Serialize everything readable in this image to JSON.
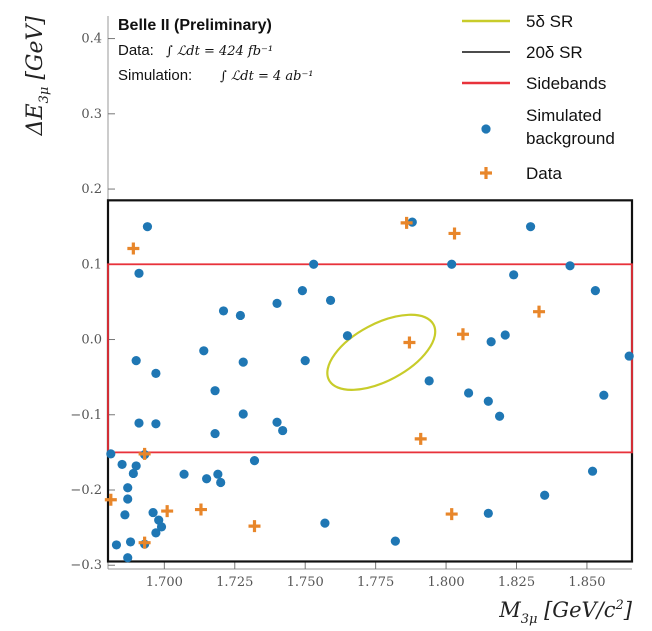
{
  "chart_data": {
    "type": "scatter",
    "xlabel": "M3μ [GeV/c²]",
    "ylabel": "ΔE3μ [GeV]",
    "xlim": [
      1.68,
      1.866
    ],
    "ylim": [
      -0.305,
      0.43
    ],
    "x_ticks": [
      1.7,
      1.725,
      1.75,
      1.775,
      1.8,
      1.825,
      1.85
    ],
    "x_tick_labels": [
      "1.700",
      "1.725",
      "1.750",
      "1.775",
      "1.800",
      "1.825",
      "1.850"
    ],
    "y_ticks": [
      -0.3,
      -0.2,
      -0.1,
      0.0,
      0.1,
      0.2,
      0.3,
      0.4
    ],
    "y_tick_labels": [
      "−0.3",
      "−0.2",
      "−0.1",
      "0.0",
      "0.1",
      "0.2",
      "0.3",
      "0.4"
    ],
    "info": {
      "title": "Belle II (Preliminary)",
      "data_label": "Data:",
      "data_lumi": "∫ ℒdt = 424 fb⁻¹",
      "sim_label": "Simulation:",
      "sim_lumi": "∫ ℒdt = 4 ab⁻¹"
    },
    "legend": [
      {
        "key": "sr5",
        "label": "5δ SR",
        "color": "#c8cc2a",
        "marker": "line"
      },
      {
        "key": "sr20",
        "label": "20δ SR",
        "color": "#111111",
        "marker": "line"
      },
      {
        "key": "sidebands",
        "label": "Sidebands",
        "color": "#e8323b",
        "marker": "line"
      },
      {
        "key": "sim",
        "label_line1": "Simulated",
        "label_line2": "background",
        "color": "#1f77b4",
        "marker": "dot"
      },
      {
        "key": "data",
        "label": "Data",
        "color": "#e8862a",
        "marker": "plus"
      }
    ],
    "regions": {
      "sr20": {
        "x": [
          1.68,
          1.866
        ],
        "y": [
          -0.295,
          0.185
        ],
        "color": "#111111"
      },
      "sidebands": {
        "x": [
          1.68,
          1.866
        ],
        "y": [
          -0.15,
          0.1
        ],
        "color": "#e8323b"
      },
      "sr5": {
        "center": [
          1.777,
          -0.017
        ],
        "semi_major_x": 0.021,
        "semi_minor_y": 0.038,
        "tilt_deg": -28,
        "color": "#c8cc2a"
      }
    },
    "series": [
      {
        "name": "Simulated background",
        "color": "#1f77b4",
        "points": [
          [
            1.681,
            -0.152
          ],
          [
            1.683,
            -0.273
          ],
          [
            1.685,
            -0.166
          ],
          [
            1.686,
            -0.233
          ],
          [
            1.687,
            -0.212
          ],
          [
            1.687,
            -0.197
          ],
          [
            1.688,
            -0.269
          ],
          [
            1.687,
            -0.29
          ],
          [
            1.689,
            -0.178
          ],
          [
            1.69,
            -0.028
          ],
          [
            1.69,
            -0.168
          ],
          [
            1.691,
            0.088
          ],
          [
            1.691,
            -0.111
          ],
          [
            1.693,
            -0.272
          ],
          [
            1.693,
            -0.153
          ],
          [
            1.694,
            0.15
          ],
          [
            1.696,
            -0.23
          ],
          [
            1.697,
            -0.112
          ],
          [
            1.697,
            -0.045
          ],
          [
            1.697,
            -0.257
          ],
          [
            1.698,
            -0.24
          ],
          [
            1.699,
            -0.249
          ],
          [
            1.707,
            -0.179
          ],
          [
            1.715,
            -0.185
          ],
          [
            1.714,
            -0.015
          ],
          [
            1.718,
            -0.125
          ],
          [
            1.718,
            -0.068
          ],
          [
            1.719,
            -0.179
          ],
          [
            1.72,
            -0.19
          ],
          [
            1.721,
            0.038
          ],
          [
            1.727,
            0.032
          ],
          [
            1.728,
            -0.099
          ],
          [
            1.728,
            -0.03
          ],
          [
            1.732,
            -0.161
          ],
          [
            1.74,
            0.048
          ],
          [
            1.74,
            -0.11
          ],
          [
            1.742,
            -0.121
          ],
          [
            1.749,
            0.065
          ],
          [
            1.75,
            -0.028
          ],
          [
            1.753,
            0.1
          ],
          [
            1.757,
            -0.244
          ],
          [
            1.759,
            0.052
          ],
          [
            1.765,
            0.005
          ],
          [
            1.782,
            -0.268
          ],
          [
            1.788,
            0.156
          ],
          [
            1.794,
            -0.055
          ],
          [
            1.802,
            0.1
          ],
          [
            1.808,
            -0.071
          ],
          [
            1.815,
            -0.082
          ],
          [
            1.815,
            -0.231
          ],
          [
            1.816,
            -0.003
          ],
          [
            1.819,
            -0.102
          ],
          [
            1.821,
            0.006
          ],
          [
            1.824,
            0.086
          ],
          [
            1.83,
            0.15
          ],
          [
            1.835,
            -0.207
          ],
          [
            1.844,
            0.098
          ],
          [
            1.852,
            -0.175
          ],
          [
            1.853,
            0.065
          ],
          [
            1.856,
            -0.074
          ],
          [
            1.865,
            -0.022
          ]
        ]
      },
      {
        "name": "Data",
        "color": "#e8862a",
        "points": [
          [
            1.681,
            -0.213
          ],
          [
            1.689,
            0.121
          ],
          [
            1.693,
            -0.152
          ],
          [
            1.693,
            -0.27
          ],
          [
            1.701,
            -0.228
          ],
          [
            1.713,
            -0.226
          ],
          [
            1.732,
            -0.248
          ],
          [
            1.786,
            0.155
          ],
          [
            1.787,
            -0.004
          ],
          [
            1.791,
            -0.132
          ],
          [
            1.802,
            -0.232
          ],
          [
            1.803,
            0.141
          ],
          [
            1.806,
            0.007
          ],
          [
            1.833,
            0.037
          ]
        ]
      }
    ]
  }
}
